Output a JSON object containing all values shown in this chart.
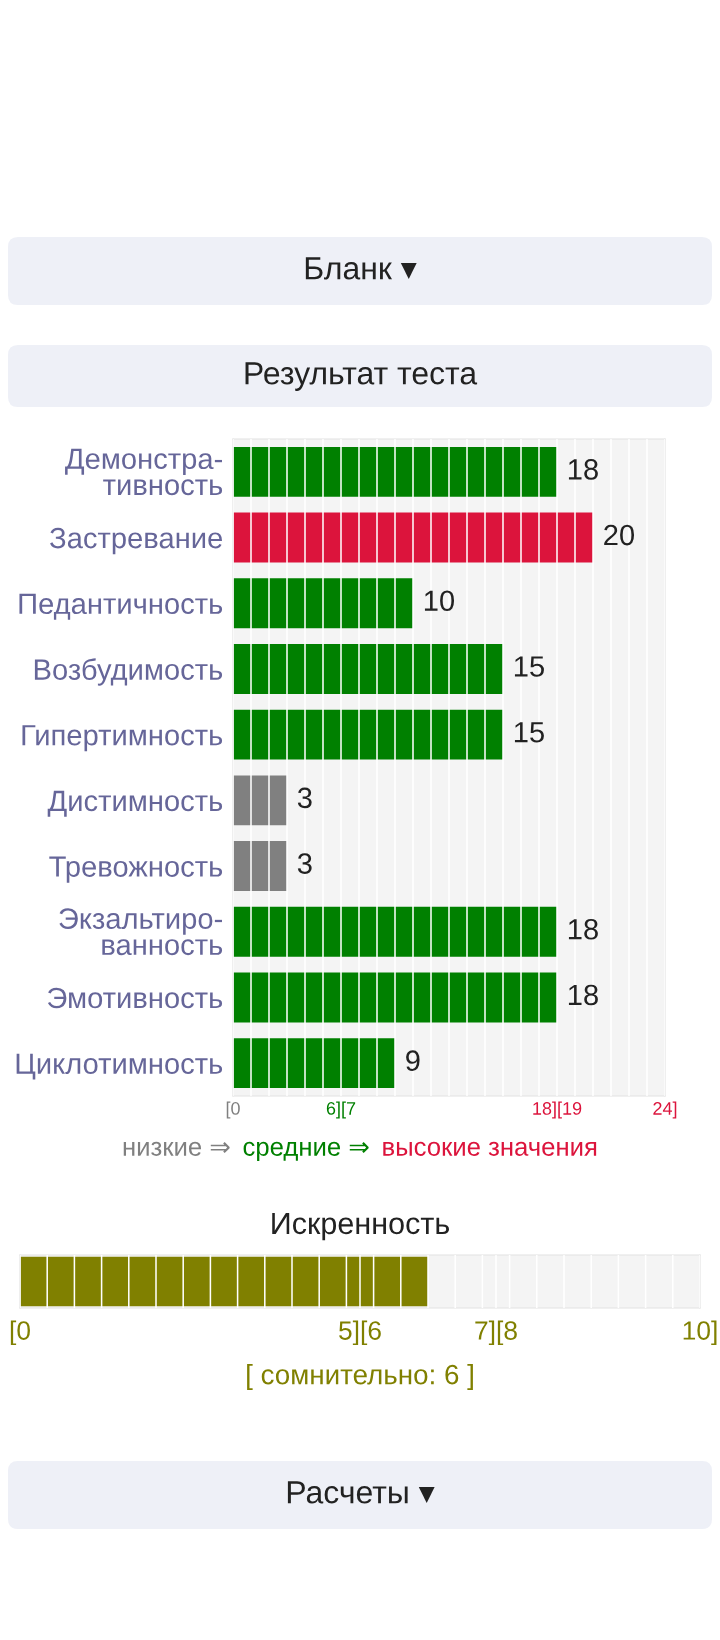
{
  "chart_data": [
    {
      "type": "bar",
      "orientation": "horizontal",
      "stacked": true,
      "title": "Результат теста",
      "annotations": [
        "Бланк ▾"
      ],
      "categories": [
        "Демонстра-\nтивность",
        "Застревание",
        "Педантичность",
        "Возбудимость",
        "Гипертимность",
        "Дистимность",
        "Тревожность",
        "Экзальтиро-\nванность",
        "Эмотивность",
        "Циклотимность"
      ],
      "series": [
        {
          "name": "низкие ⇒",
          "color": "#808080",
          "values": [
            null,
            null,
            null,
            null,
            null,
            3,
            3,
            null,
            null,
            null
          ],
          "value_labels": [
            null,
            null,
            null,
            null,
            null,
            "3",
            "3",
            null,
            null,
            null
          ]
        },
        {
          "name": "средние ⇒",
          "color": "#008000",
          "values": [
            18,
            null,
            10,
            15,
            15,
            null,
            null,
            18,
            18,
            9
          ],
          "value_labels": [
            "18",
            null,
            "10",
            "15",
            "15",
            null,
            null,
            "18",
            "18",
            "9"
          ]
        },
        {
          "name": "высокие значения",
          "color": "#dc143c",
          "values": [
            null,
            20,
            null,
            null,
            null,
            null,
            null,
            null,
            null,
            null
          ],
          "value_labels": [
            null,
            "20",
            null,
            null,
            null,
            null,
            null,
            null,
            null,
            null
          ]
        }
      ],
      "xlim": [
        0,
        24
      ],
      "xticks": [
        {
          "value": 0,
          "label": "[0"
        },
        {
          "value": 1,
          "label": null
        },
        {
          "value": 2,
          "label": null
        },
        {
          "value": 3,
          "label": null
        },
        {
          "value": 4,
          "label": null
        },
        {
          "value": 5,
          "label": null
        },
        {
          "value": 6,
          "label": "6][7"
        },
        {
          "value": 7,
          "label": null
        },
        {
          "value": 8,
          "label": null
        },
        {
          "value": 9,
          "label": null
        },
        {
          "value": 10,
          "label": null
        },
        {
          "value": 11,
          "label": null
        },
        {
          "value": 12,
          "label": null
        },
        {
          "value": 13,
          "label": null
        },
        {
          "value": 14,
          "label": null
        },
        {
          "value": 15,
          "label": null
        },
        {
          "value": 16,
          "label": null
        },
        {
          "value": 17,
          "label": null
        },
        {
          "value": 18,
          "label": "18][19"
        },
        {
          "value": 19,
          "label": null
        },
        {
          "value": 20,
          "label": null
        },
        {
          "value": 21,
          "label": null
        },
        {
          "value": 22,
          "label": null
        },
        {
          "value": 23,
          "label": null
        },
        {
          "value": 24,
          "label": "24]"
        }
      ],
      "grid": "x",
      "legend": "bottom"
    },
    {
      "type": "bar",
      "orientation": "horizontal",
      "title": "Искренность",
      "annotations": [
        "[ сомнительно: 6 ]",
        "Расчеты ▾"
      ],
      "categories": [
        null
      ],
      "series": [
        {
          "color": "#808000",
          "values": [
            6
          ]
        }
      ],
      "xlim": [
        0,
        10
      ],
      "xticks": [
        {
          "value": 0,
          "label": "[0"
        },
        {
          "value": 0.4,
          "label": null
        },
        {
          "value": 0.8,
          "label": null
        },
        {
          "value": 1.2,
          "label": null
        },
        {
          "value": 1.6,
          "label": null
        },
        {
          "value": 2,
          "label": null
        },
        {
          "value": 2.4,
          "label": null
        },
        {
          "value": 2.8,
          "label": null
        },
        {
          "value": 3.2,
          "label": null
        },
        {
          "value": 3.6,
          "label": null
        },
        {
          "value": 4,
          "label": null
        },
        {
          "value": 4.4,
          "label": null
        },
        {
          "value": 4.8,
          "label": null
        },
        {
          "value": 5,
          "label": "5][6"
        },
        {
          "value": 5.2,
          "label": null
        },
        {
          "value": 5.6,
          "label": null
        },
        {
          "value": 6,
          "label": null
        },
        {
          "value": 6.4,
          "label": null
        },
        {
          "value": 6.8,
          "label": null
        },
        {
          "value": 7,
          "label": "7][8"
        },
        {
          "value": 7.2,
          "label": null
        },
        {
          "value": 7.6,
          "label": null
        },
        {
          "value": 8,
          "label": null
        },
        {
          "value": 8.4,
          "label": null
        },
        {
          "value": 8.8,
          "label": null
        },
        {
          "value": 9.2,
          "label": null
        },
        {
          "value": 9.6,
          "label": null
        },
        {
          "value": 10,
          "label": "10]"
        }
      ],
      "grid": "x",
      "tick_labels": "x"
    }
  ]
}
